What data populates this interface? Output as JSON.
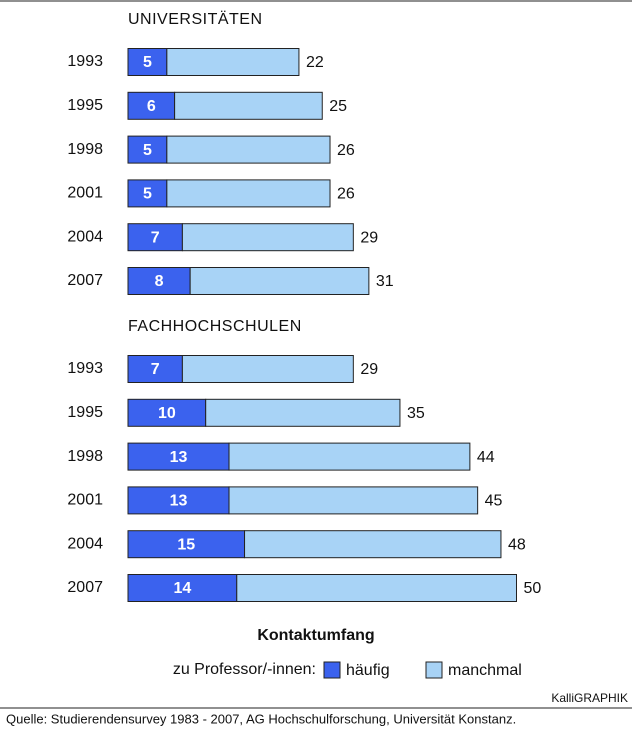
{
  "chart_data": [
    {
      "type": "stacked-bar-horizontal",
      "title": "UNIVERSITÄTEN",
      "categories": [
        "1993",
        "1995",
        "1998",
        "2001",
        "2004",
        "2007"
      ],
      "series": [
        {
          "name": "häufig",
          "color": "#3b62ee",
          "values": [
            5,
            6,
            5,
            5,
            7,
            8
          ]
        },
        {
          "name": "manchmal",
          "color": "#a8d3f6",
          "values": [
            17,
            19,
            21,
            21,
            22,
            23
          ]
        }
      ],
      "totals": [
        22,
        25,
        26,
        26,
        29,
        31
      ]
    },
    {
      "type": "stacked-bar-horizontal",
      "title": "FACHHOCHSCHULEN",
      "categories": [
        "1993",
        "1995",
        "1998",
        "2001",
        "2004",
        "2007"
      ],
      "series": [
        {
          "name": "häufig",
          "color": "#3b62ee",
          "values": [
            7,
            10,
            13,
            13,
            15,
            14
          ]
        },
        {
          "name": "manchmal",
          "color": "#a8d3f6",
          "values": [
            22,
            25,
            31,
            32,
            33,
            36
          ]
        }
      ],
      "totals": [
        29,
        35,
        44,
        45,
        48,
        50
      ]
    }
  ],
  "legend_title": "Kontaktumfang",
  "legend_label": "zu Professor/-innen:",
  "credit": "KalliGRAPHIK",
  "source": "Quelle: Studierendensurvey 1983 - 2007, AG Hochschulforschung, Universität Konstanz."
}
